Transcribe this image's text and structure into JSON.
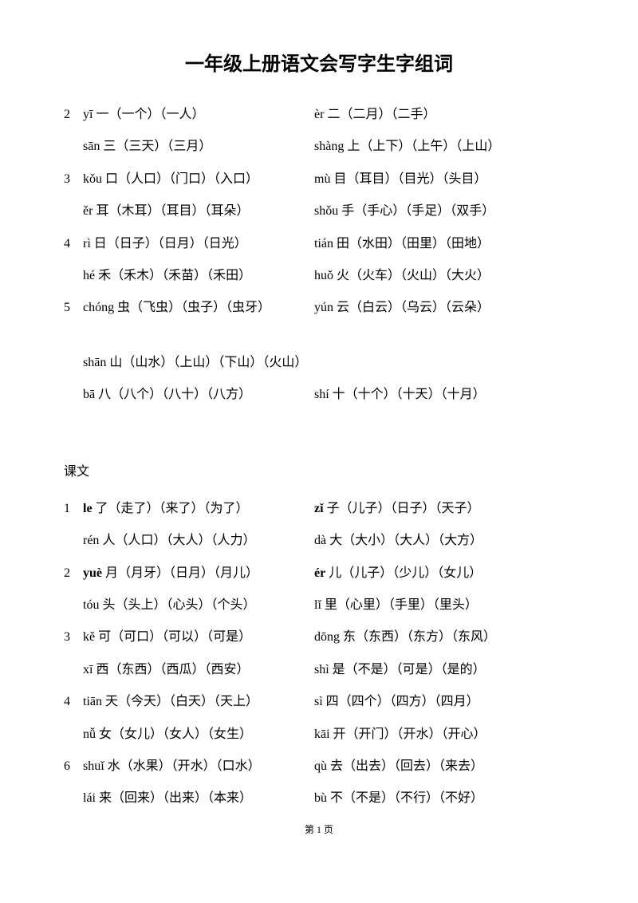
{
  "title": "一年级上册语文会写字生字组词",
  "section1": [
    {
      "num": "2",
      "left_pinyin": "yī",
      "left_text": "一（一个）（一人）",
      "right_pinyin": "èr",
      "right_text": "二（二月）（二手）"
    },
    {
      "num": "",
      "left_pinyin": "sān",
      "left_text": "三（三天）（三月）",
      "right_pinyin": "shàng",
      "right_text": "上（上下）（上午）（上山）"
    },
    {
      "num": "3",
      "left_pinyin": "kǒu",
      "left_text": "口（人口）（门口）（入口）",
      "right_pinyin": "mù",
      "right_text": "目（耳目）（目光）（头目）"
    },
    {
      "num": "",
      "left_pinyin": "ěr",
      "left_text": "耳（木耳）（耳目）（耳朵）",
      "right_pinyin": "shǒu",
      "right_text": "手（手心）（手足）（双手）"
    },
    {
      "num": "4",
      "left_pinyin": "rì",
      "left_text": "日（日子）（日月）（日光）",
      "right_pinyin": "tián",
      "right_text": "田（水田）（田里）（田地）"
    },
    {
      "num": "",
      "left_pinyin": "hé",
      "left_text": "禾（禾木）（禾苗）（禾田）",
      "right_pinyin": "huǒ",
      "right_text": "火（火车）（火山）（大火）"
    },
    {
      "num": "5",
      "left_pinyin": "chóng",
      "left_text": "虫（飞虫）（虫子）（虫牙）",
      "right_pinyin": "yún",
      "right_text": "云（白云）（乌云）（云朵）"
    }
  ],
  "section2": [
    {
      "num": "",
      "left_pinyin": "shān",
      "left_text": "山（山水）（上山）（下山）（火山）",
      "right_pinyin": "",
      "right_text": ""
    },
    {
      "num": "",
      "left_pinyin": "bā",
      "left_text": "八（八个）（八十）（八方）",
      "right_pinyin": "shí",
      "right_text": "十（十个）（十天）（十月）"
    }
  ],
  "section_label": "课文",
  "section3": [
    {
      "num": "1",
      "left_pinyin": "le",
      "left_bold": true,
      "left_text": "了（走了）（来了）（为了）",
      "right_pinyin": "zǐ",
      "right_bold": true,
      "right_text": "子（儿子）（日子）（天子）"
    },
    {
      "num": "",
      "left_pinyin": "rén",
      "left_text": "人（人口）（大人）（人力）",
      "right_pinyin": "dà",
      "right_text": "大（大小）（大人）（大方）"
    },
    {
      "num": "2",
      "left_pinyin": "yuè",
      "left_bold": true,
      "left_text": "月（月牙）（日月）（月儿）",
      "right_pinyin": "ér",
      "right_bold": true,
      "right_text": "儿（儿子）（少儿）（女儿）"
    },
    {
      "num": "",
      "left_pinyin": "tóu",
      "left_text": "头（头上）（心头）（个头）",
      "right_pinyin": "lǐ",
      "right_text": "里（心里）（手里）（里头）"
    },
    {
      "num": "3",
      "left_pinyin": "kě",
      "left_text": "可（可口）（可以）（可是）",
      "right_pinyin": "dōng",
      "right_text": "东（东西）（东方）（东风）"
    },
    {
      "num": "",
      "left_pinyin": "xī",
      "left_text": "西（东西）（西瓜）（西安）",
      "right_pinyin": "shì",
      "right_text": "是（不是）（可是）（是的）"
    },
    {
      "num": "4",
      "left_pinyin": "tiān",
      "left_text": "天（今天）（白天）（天上）",
      "right_pinyin": "sì",
      "right_text": "四（四个）（四方）（四月）"
    },
    {
      "num": "",
      "left_pinyin": "nǚ",
      "left_text": "女（女儿）（女人）（女生）",
      "right_pinyin": "kāi",
      "right_text": "开（开门）（开水）（开心）"
    },
    {
      "num": "6",
      "left_pinyin": "shuǐ",
      "left_text": "水（水果）（开水）（口水）",
      "right_pinyin": "qù",
      "right_text": "去（出去）（回去）（来去）"
    },
    {
      "num": "",
      "left_pinyin": "lái",
      "left_text": "来（回来）（出来）（本来）",
      "right_pinyin": "bù",
      "right_text": "不（不是）（不行）（不好）"
    }
  ],
  "footer": "第 1 页"
}
